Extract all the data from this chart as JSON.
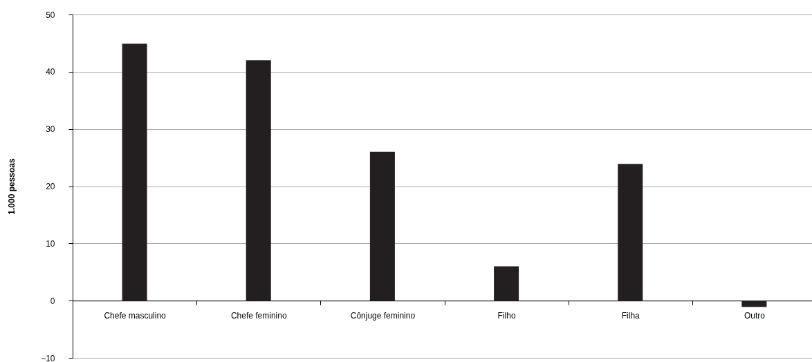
{
  "chart_data": {
    "type": "bar",
    "ylabel": "1.000 pessoas",
    "categories": [
      "Chefe masculino",
      "Chefe feminino",
      "Cônjuge feminino",
      "Filho",
      "Filha",
      "Outro"
    ],
    "values": [
      44.9,
      42.0,
      26.0,
      6.0,
      23.9,
      -1.1
    ],
    "color": "#231f20",
    "ylim": [
      -10,
      50
    ],
    "yticks": [
      -10,
      0,
      10,
      20,
      30,
      40,
      50
    ],
    "grid": "y"
  }
}
